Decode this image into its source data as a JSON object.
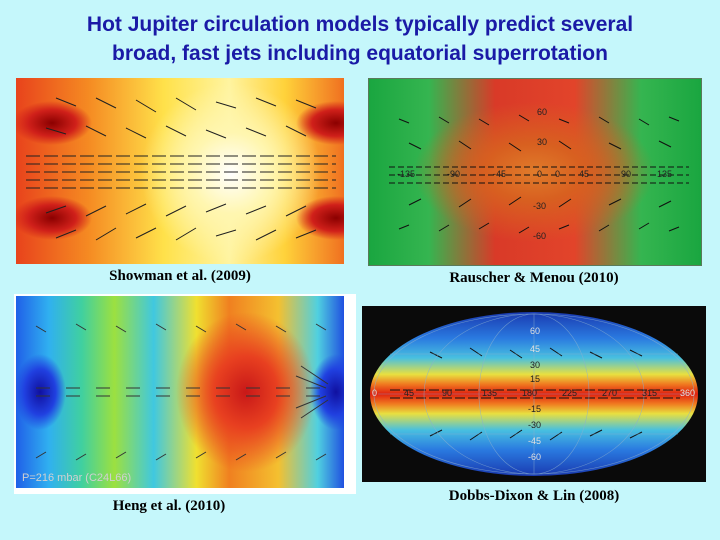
{
  "slide": {
    "title_line1": "Hot Jupiter circulation models typically predict several",
    "title_line2": "broad, fast jets including equatorial superrotation"
  },
  "panels": [
    {
      "caption": "Showman et al. (2009)"
    },
    {
      "caption": "Rauscher & Menou (2010)",
      "lon_labels": [
        "-135",
        "-90",
        "-45",
        "0",
        "45",
        "90",
        "135"
      ],
      "lat_labels": [
        "60",
        "30",
        "0",
        "-30",
        "-60"
      ]
    },
    {
      "caption": "Heng et al. (2010)",
      "overlay_label": "P=216 mbar (C24L66)"
    },
    {
      "caption": "Dobbs-Dixon & Lin (2008)",
      "lon_labels": [
        "0",
        "45",
        "90",
        "135",
        "180",
        "225",
        "270",
        "315",
        "360"
      ],
      "lat_labels": [
        "60",
        "45",
        "30",
        "15",
        "-15",
        "-30",
        "-45",
        "-60"
      ]
    }
  ],
  "colors": {
    "background": "#c5f7fb",
    "title": "#1a1aa6"
  }
}
